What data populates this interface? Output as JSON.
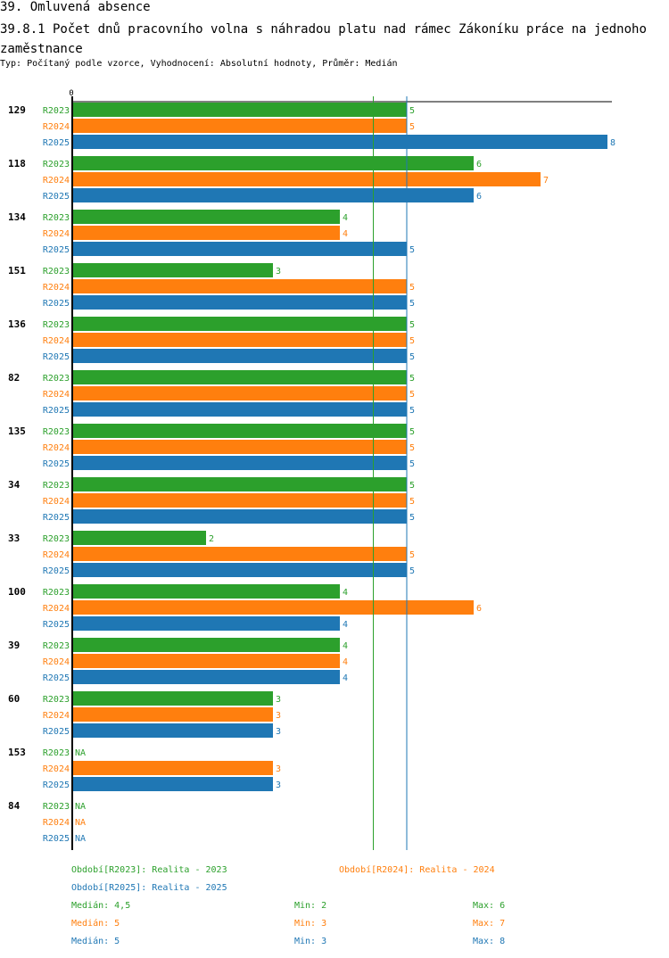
{
  "header": {
    "title": "39. Omluvená absence",
    "subtitle": "39.8.1 Počet dnů pracovního volna s náhradou platu nad rámec Zákoníku práce na jednoho zaměstnance",
    "type_line": "Typ: Počítaný podle vzorce, Vyhodnocení: Absolutní hodnoty, Průměr: Medián"
  },
  "colors": {
    "R2023": "#2ca02c",
    "R2024": "#ff7f0e",
    "R2025": "#1f77b4"
  },
  "chart_data": {
    "type": "bar",
    "orientation": "horizontal",
    "axis_zero_label": "0",
    "na_label": "NA",
    "series_names": [
      "R2023",
      "R2024",
      "R2025"
    ],
    "categories": [
      "129",
      "118",
      "134",
      "151",
      "136",
      "82",
      "135",
      "34",
      "33",
      "100",
      "39",
      "60",
      "153",
      "84"
    ],
    "series": [
      {
        "name": "R2023",
        "values": [
          5,
          6,
          4,
          3,
          5,
          5,
          5,
          5,
          2,
          4,
          4,
          3,
          null,
          null
        ]
      },
      {
        "name": "R2024",
        "values": [
          5,
          7,
          4,
          5,
          5,
          5,
          5,
          5,
          5,
          6,
          4,
          3,
          3,
          null
        ]
      },
      {
        "name": "R2025",
        "values": [
          8,
          6,
          5,
          5,
          5,
          5,
          5,
          5,
          5,
          4,
          4,
          3,
          3,
          null
        ]
      }
    ],
    "median_lines": [
      4.5,
      5,
      5
    ],
    "xlim": [
      0,
      8
    ]
  },
  "legend": {
    "periods": [
      "Období[R2023]: Realita - 2023",
      "Období[R2024]: Realita - 2024",
      "Období[R2025]: Realita - 2025"
    ],
    "stats": [
      {
        "median": "Medián: 4,5",
        "min": "Min: 2",
        "max": "Max: 6"
      },
      {
        "median": "Medián: 5",
        "min": "Min: 3",
        "max": "Max: 7"
      },
      {
        "median": "Medián: 5",
        "min": "Min: 3",
        "max": "Max: 8"
      }
    ]
  }
}
